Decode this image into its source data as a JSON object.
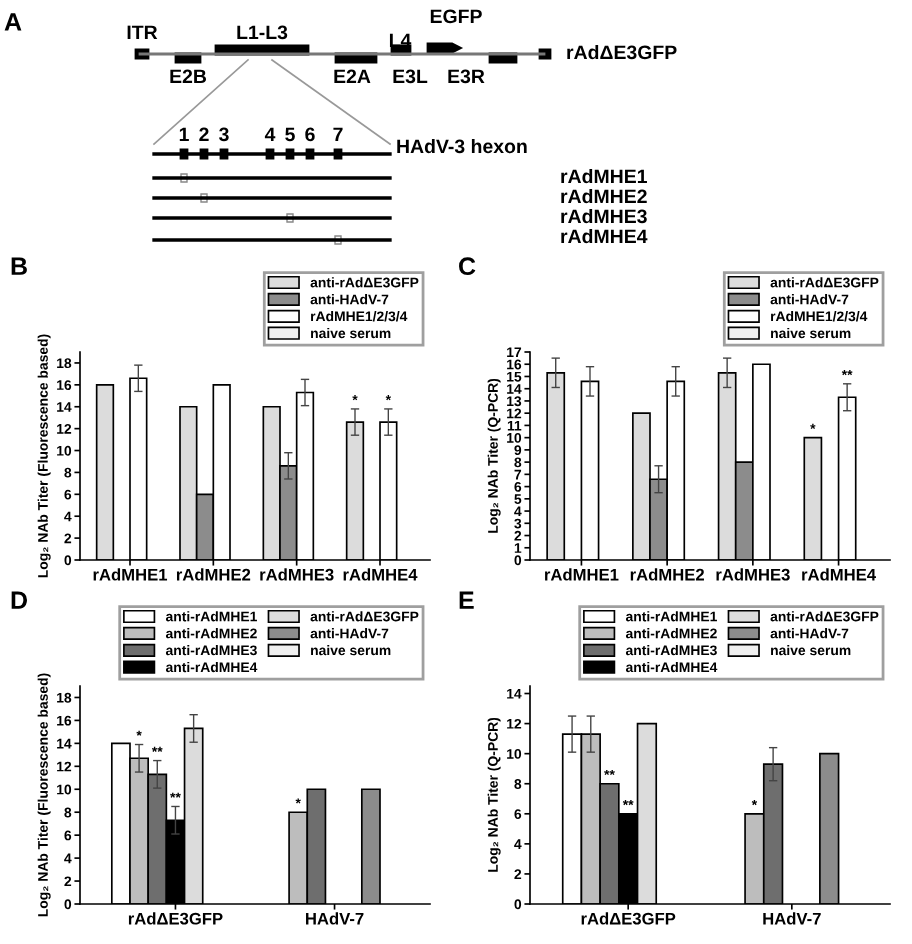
{
  "chart_data": [
    {
      "type": "other",
      "title": "A",
      "annotations": [
        "ITR",
        "L1-L3",
        "L4",
        "EGFP",
        "rAdΔE3GFP",
        "E2B",
        "E2A",
        "E3L",
        "E3R",
        "1",
        "2",
        "3",
        "4",
        "5",
        "6",
        "7",
        "HAdV-3 hexon",
        "rAdMHE1",
        "rAdMHE2",
        "rAdMHE3",
        "rAdMHE4"
      ]
    },
    {
      "type": "bar",
      "title": "B",
      "ylabel": "Log₂ NAb Titer (Fluorescence based)",
      "categories": [
        "rAdMHE1",
        "rAdMHE2",
        "rAdMHE3",
        "rAdMHE4"
      ],
      "ylim": [
        0,
        19
      ],
      "yticks": [
        0,
        2,
        4,
        6,
        8,
        10,
        12,
        14,
        16,
        18
      ],
      "grid": false,
      "legend": "top right",
      "series": [
        {
          "name": "anti-rAdΔE3GFP",
          "color": "#dcdcdc",
          "values": [
            16,
            14,
            14,
            12.6
          ],
          "errors": [
            null,
            null,
            null,
            1.2
          ],
          "value_labels": [
            null,
            null,
            null,
            "*"
          ]
        },
        {
          "name": "anti-HAdV-7",
          "color": "#8c8c8c",
          "values": [
            null,
            6,
            8.6,
            null
          ],
          "errors": [
            null,
            null,
            1.2,
            null
          ]
        },
        {
          "name": "rAdMHE1/2/3/4",
          "color": "#ffffff",
          "values": [
            16.6,
            16,
            15.3,
            12.6
          ],
          "errors": [
            1.2,
            null,
            1.2,
            1.2
          ],
          "value_labels": [
            null,
            null,
            null,
            "*"
          ]
        },
        {
          "name": "naive serum",
          "color": "#f0f0f0",
          "values": [
            null,
            null,
            null,
            null
          ]
        }
      ]
    },
    {
      "type": "bar",
      "title": "C",
      "ylabel": "Log₂ NAb Titer (Q-PCR)",
      "categories": [
        "rAdMHE1",
        "rAdMHE2",
        "rAdMHE3",
        "rAdMHE4"
      ],
      "ylim": [
        0,
        17
      ],
      "yticks": [
        0,
        1,
        2,
        3,
        4,
        5,
        6,
        7,
        8,
        9,
        10,
        11,
        12,
        13,
        14,
        15,
        16,
        17
      ],
      "grid": false,
      "legend": "top right",
      "series": [
        {
          "name": "anti-rAdΔE3GFP",
          "color": "#dcdcdc",
          "values": [
            15.3,
            12,
            15.3,
            10
          ],
          "errors": [
            1.2,
            null,
            1.2,
            null
          ],
          "value_labels": [
            null,
            null,
            null,
            "*"
          ]
        },
        {
          "name": "anti-HAdV-7",
          "color": "#8c8c8c",
          "values": [
            null,
            6.6,
            8,
            null
          ],
          "errors": [
            null,
            1.1,
            null,
            null
          ]
        },
        {
          "name": "rAdMHE1/2/3/4",
          "color": "#ffffff",
          "values": [
            14.6,
            14.6,
            16,
            13.3
          ],
          "errors": [
            1.2,
            1.2,
            null,
            1.1
          ],
          "value_labels": [
            null,
            null,
            null,
            "**"
          ]
        },
        {
          "name": "naive serum",
          "color": "#f0f0f0",
          "values": [
            null,
            null,
            null,
            null
          ]
        }
      ]
    },
    {
      "type": "bar",
      "title": "D",
      "ylabel": "Log₂ NAb Titer (Fluorescence based)",
      "categories": [
        "rAdΔE3GFP",
        "HAdV-7"
      ],
      "ylim": [
        0,
        19
      ],
      "yticks": [
        0,
        2,
        4,
        6,
        8,
        10,
        12,
        14,
        16,
        18
      ],
      "grid": false,
      "legend": "top right",
      "series": [
        {
          "name": "anti-rAdMHE1",
          "color": "#ffffff",
          "values": [
            14,
            null
          ]
        },
        {
          "name": "anti-rAdMHE2",
          "color": "#bdbdbd",
          "values": [
            12.7,
            8
          ],
          "errors": [
            1.2,
            null
          ],
          "value_labels": [
            "*",
            "*"
          ]
        },
        {
          "name": "anti-rAdMHE3",
          "color": "#6e6e6e",
          "values": [
            11.3,
            10
          ],
          "errors": [
            1.2,
            null
          ],
          "value_labels": [
            "**",
            null
          ]
        },
        {
          "name": "anti-rAdMHE4",
          "color": "#000000",
          "values": [
            7.3,
            null
          ],
          "errors": [
            1.2,
            null
          ],
          "value_labels": [
            "**",
            null
          ]
        },
        {
          "name": "anti-rAdΔE3GFP",
          "color": "#dcdcdc",
          "values": [
            15.3,
            null
          ],
          "errors": [
            1.2,
            null
          ]
        },
        {
          "name": "anti-HAdV-7",
          "color": "#8c8c8c",
          "values": [
            null,
            10
          ]
        },
        {
          "name": "naive serum",
          "color": "#f0f0f0",
          "values": [
            null,
            null
          ]
        }
      ]
    },
    {
      "type": "bar",
      "title": "E",
      "ylabel": "Log₂ NAb Titer (Q-PCR)",
      "categories": [
        "rAdΔE3GFP",
        "HAdV-7"
      ],
      "ylim": [
        0,
        14.5
      ],
      "yticks": [
        0,
        2,
        4,
        6,
        8,
        10,
        12,
        14
      ],
      "grid": false,
      "legend": "top right",
      "series": [
        {
          "name": "anti-rAdMHE1",
          "color": "#ffffff",
          "values": [
            11.3,
            null
          ],
          "errors": [
            1.2,
            null
          ]
        },
        {
          "name": "anti-rAdMHE2",
          "color": "#bdbdbd",
          "values": [
            11.3,
            6
          ],
          "errors": [
            1.2,
            null
          ],
          "value_labels": [
            null,
            "*"
          ]
        },
        {
          "name": "anti-rAdMHE3",
          "color": "#6e6e6e",
          "values": [
            8,
            9.3
          ],
          "errors": [
            null,
            1.1
          ],
          "value_labels": [
            "**",
            null
          ]
        },
        {
          "name": "anti-rAdMHE4",
          "color": "#000000",
          "values": [
            6,
            null
          ],
          "value_labels": [
            "**",
            null
          ]
        },
        {
          "name": "anti-rAdΔE3GFP",
          "color": "#dcdcdc",
          "values": [
            12,
            null
          ]
        },
        {
          "name": "anti-HAdV-7",
          "color": "#8c8c8c",
          "values": [
            null,
            10
          ]
        },
        {
          "name": "naive serum",
          "color": "#f0f0f0",
          "values": [
            null,
            null
          ]
        }
      ]
    }
  ]
}
